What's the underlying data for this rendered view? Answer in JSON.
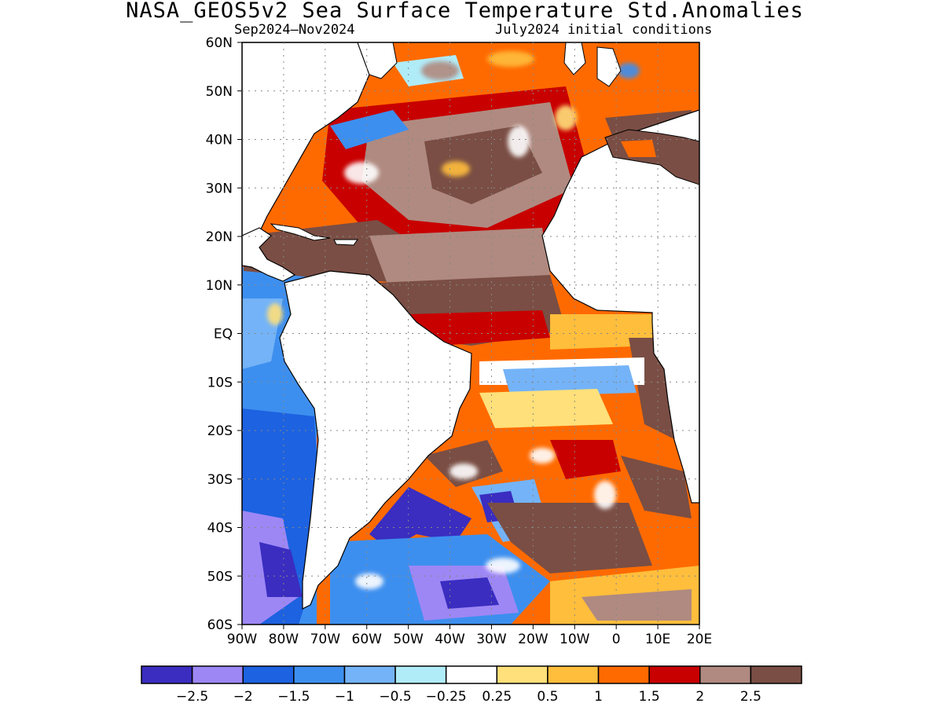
{
  "title": "NASA_GEOS5v2 Sea Surface Temperature Std.Anomalies",
  "subtitle_left": "Sep2024–Nov2024",
  "subtitle_right": "July2024 initial conditions",
  "map": {
    "lon_range": [
      -90,
      20
    ],
    "lat_range": [
      -60,
      60
    ],
    "gridlines": true,
    "lat_labels": [
      "60N",
      "50N",
      "40N",
      "30N",
      "20N",
      "10N",
      "EQ",
      "10S",
      "20S",
      "30S",
      "40S",
      "50S",
      "60S"
    ],
    "lon_labels": [
      "90W",
      "80W",
      "70W",
      "60W",
      "50W",
      "40W",
      "30W",
      "20W",
      "10W",
      "0",
      "10E",
      "20E"
    ]
  },
  "colorbar": {
    "colors": [
      "#3a2dc0",
      "#9d87f5",
      "#1d62e0",
      "#3d8fef",
      "#74b3f7",
      "#b0ecf8",
      "#ffffff",
      "#ffe07a",
      "#ffbe3c",
      "#ff6a00",
      "#c80000",
      "#b08a80",
      "#7a4e44"
    ],
    "labels": [
      "−2.5",
      "−2",
      "−1.5",
      "−1",
      "−0.5",
      "−0.25",
      "0.25",
      "0.5",
      "1",
      "1.5",
      "2",
      "2.5"
    ]
  }
}
